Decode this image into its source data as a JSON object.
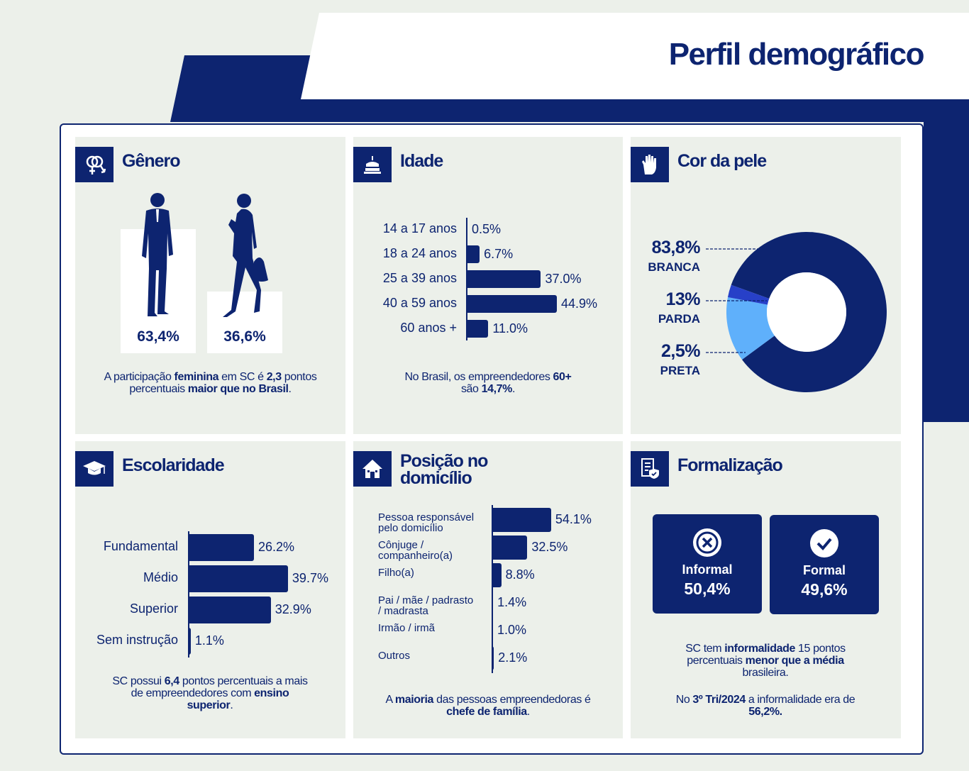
{
  "page_title": "Perfil demográfico",
  "colors": {
    "navy": "#0d2470",
    "light_blue": "#5fb0fb",
    "mid_blue": "#2740c8",
    "panel_bg": "#ecf0ea"
  },
  "genero": {
    "title": "Gênero",
    "icon": "gender-icon",
    "male_pct": "63,4%",
    "female_pct": "36,6%",
    "note": {
      "t1": "A participação ",
      "b1": "feminina",
      "t2": " em SC é ",
      "b2": "2,3",
      "t3": " pontos percentuais ",
      "b3": "maior que no Brasil",
      "t4": "."
    }
  },
  "idade": {
    "title": "Idade",
    "icon": "cake-icon",
    "note": {
      "t1": "No Brasil, os empreendedores ",
      "b1": "60+",
      "t2": " são ",
      "b2": "14,7%",
      "t3": "."
    }
  },
  "cor": {
    "title": "Cor da pele",
    "icon": "hand-icon",
    "labels": [
      {
        "pct": "83,8%",
        "name": "BRANCA"
      },
      {
        "pct": "13%",
        "name": "PARDA"
      },
      {
        "pct": "2,5%",
        "name": "PRETA"
      }
    ]
  },
  "escolaridade": {
    "title": "Escolaridade",
    "icon": "graduation-cap-icon",
    "note": {
      "t1": "SC possui ",
      "b1": "6,4",
      "t2": " pontos percentuais a mais de empreendedores com ",
      "b2": "ensino superior",
      "t3": "."
    }
  },
  "posicao": {
    "title_line1": "Posição no",
    "title_line2": "domicílio",
    "icon": "house-icon",
    "labels": [
      "Pessoa responsável\npelo domicílio",
      "Cônjuge /\ncompanheiro(a)",
      "Filho(a)",
      "Pai / mãe / padrasto\n/ madrasta",
      "Irmão / irmã",
      "Outros"
    ],
    "note": {
      "t1": "A ",
      "b1": "maioria",
      "t2": " das pessoas empreendedoras é ",
      "b2": "chefe de família",
      "t3": "."
    }
  },
  "formalizacao": {
    "title": "Formalização",
    "icon": "document-shield-icon",
    "informal_label": "Informal",
    "informal_value": "50,4%",
    "formal_label": "Formal",
    "formal_value": "49,6%",
    "note1": {
      "t1": "SC tem ",
      "b1": "informalidade",
      "t2": " 15 pontos percentuais ",
      "b2": "menor que a média",
      "t3": " brasileira."
    },
    "note2": {
      "t1": "No ",
      "b1": "3º Tri/2024",
      "t2": " a informalidade era de ",
      "b2": "56,2%."
    }
  },
  "chart_data": [
    {
      "type": "bar",
      "title": "Idade",
      "categories": [
        "14 a 17 anos",
        "18 a 24 anos",
        "25 a 39 anos",
        "40 a 59 anos",
        "60 anos +"
      ],
      "values": [
        0.5,
        6.7,
        37.0,
        44.9,
        11.0
      ],
      "value_labels": [
        "0.5%",
        "6.7%",
        "37.0%",
        "44.9%",
        "11.0%"
      ],
      "orientation": "horizontal",
      "grid": false
    },
    {
      "type": "pie",
      "title": "Cor da pele",
      "categories": [
        "BRANCA",
        "PARDA",
        "PRETA"
      ],
      "values": [
        83.8,
        13.0,
        2.5
      ],
      "donut": true
    },
    {
      "type": "bar",
      "title": "Escolaridade",
      "categories": [
        "Fundamental",
        "Médio",
        "Superior",
        "Sem instrução"
      ],
      "values": [
        26.2,
        39.7,
        32.9,
        1.1
      ],
      "value_labels": [
        "26.2%",
        "39.7%",
        "32.9%",
        "1.1%"
      ],
      "orientation": "horizontal",
      "grid": false
    },
    {
      "type": "bar",
      "title": "Posição no domicílio",
      "categories": [
        "Pessoa responsável pelo domicílio",
        "Cônjuge / companheiro(a)",
        "Filho(a)",
        "Pai / mãe / padrasto / madrasta",
        "Irmão / irmã",
        "Outros"
      ],
      "values": [
        54.1,
        32.5,
        8.8,
        1.4,
        1.0,
        2.1
      ],
      "value_labels": [
        "54.1%",
        "32.5%",
        "8.8%",
        "1.4%",
        "1.0%",
        "2.1%"
      ],
      "orientation": "horizontal",
      "grid": false
    },
    {
      "type": "bar",
      "title": "Gênero",
      "categories": [
        "Masculino",
        "Feminino"
      ],
      "values": [
        63.4,
        36.6
      ]
    },
    {
      "type": "bar",
      "title": "Formalização",
      "categories": [
        "Informal",
        "Formal"
      ],
      "values": [
        50.4,
        49.6
      ]
    }
  ]
}
